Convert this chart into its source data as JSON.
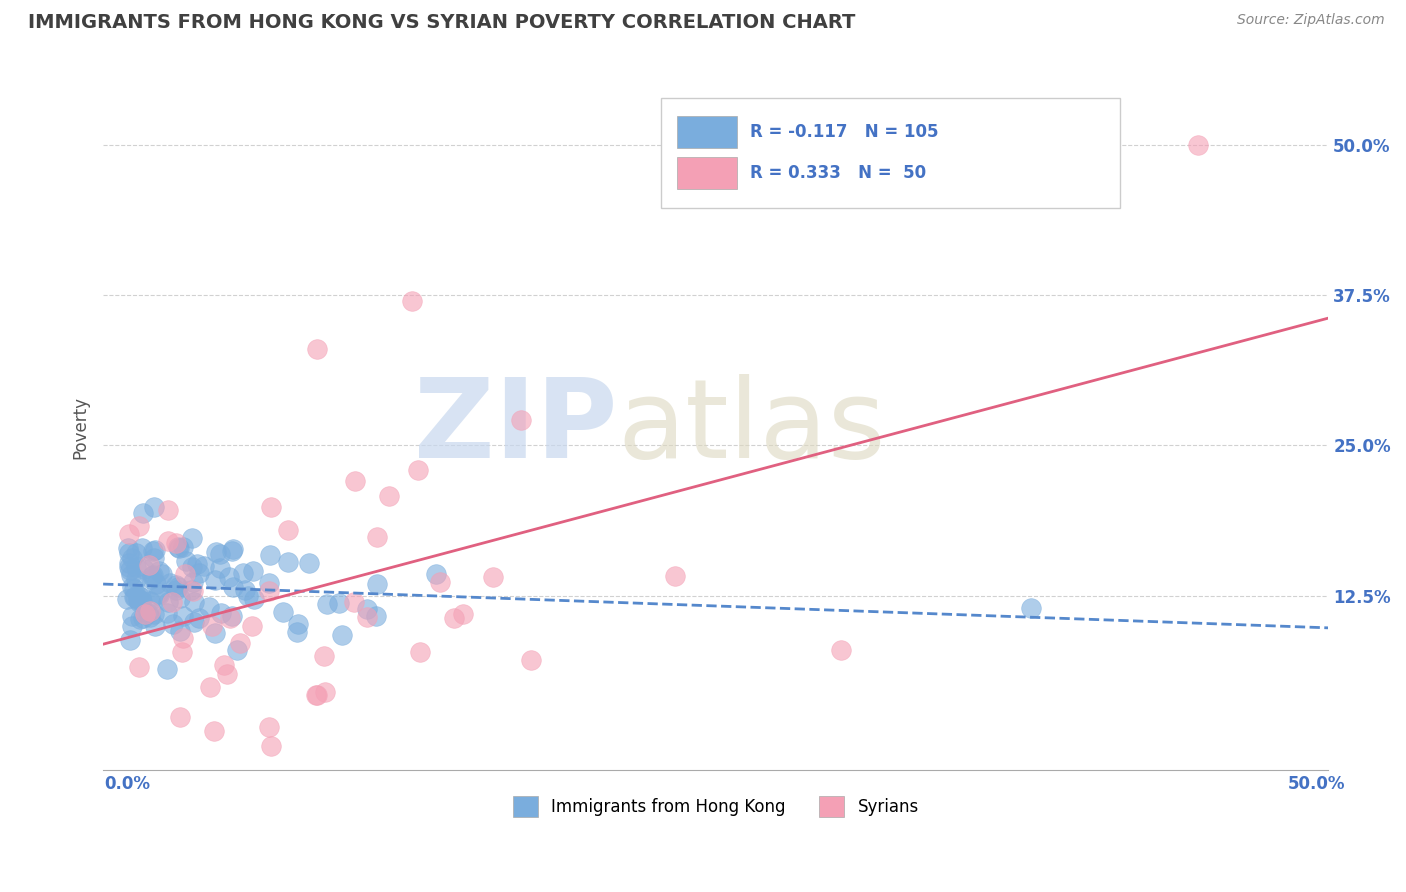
{
  "title": "IMMIGRANTS FROM HONG KONG VS SYRIAN POVERTY CORRELATION CHART",
  "source": "Source: ZipAtlas.com",
  "ylabel": "Poverty",
  "xlim": [
    0.0,
    0.5
  ],
  "ylim": [
    -0.02,
    0.55
  ],
  "yticks": [
    0.125,
    0.25,
    0.375,
    0.5
  ],
  "ytick_labels": [
    "12.5%",
    "25.0%",
    "37.5%",
    "50.0%"
  ],
  "xticks": [
    0.0,
    0.5
  ],
  "xtick_labels": [
    "0.0%",
    "50.0%"
  ],
  "legend_r1_val": "-0.117",
  "legend_n1_val": "105",
  "legend_r2_val": "0.333",
  "legend_n2_val": "50",
  "legend_label1": "Immigrants from Hong Kong",
  "legend_label2": "Syrians",
  "blue_color": "#7aaddd",
  "pink_color": "#f4a0b5",
  "blue_line_color": "#5588cc",
  "pink_line_color": "#e06080",
  "title_color": "#404040",
  "axis_color": "#4472c4",
  "background_color": "#ffffff",
  "grid_color": "#cccccc",
  "seed": 42,
  "n_blue": 105,
  "n_pink": 50,
  "R_blue": -0.117,
  "R_pink": 0.333
}
